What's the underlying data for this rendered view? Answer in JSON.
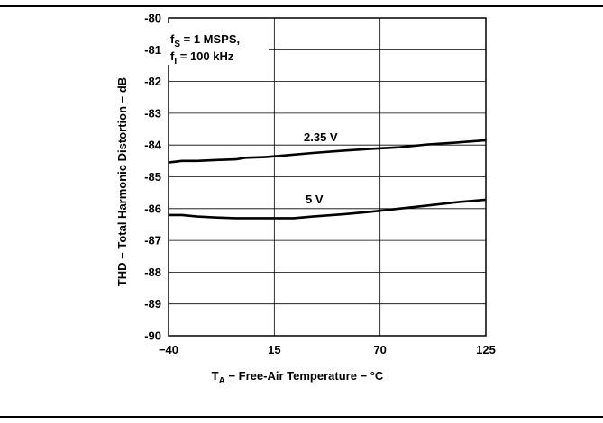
{
  "chart_data": {
    "type": "line",
    "xlabel_main": "T",
    "xlabel_sub": "A",
    "xlabel_rest": " − Free-Air Temperature − °C",
    "ylabel": "THD − Total Harmonic Distortion − dB",
    "xlim": [
      -40,
      125
    ],
    "ylim": [
      -90,
      -80
    ],
    "x_ticks": [
      -40,
      15,
      70,
      125
    ],
    "x_tick_labels": [
      "−40",
      "15",
      "70",
      "125"
    ],
    "y_ticks": [
      -80,
      -81,
      -82,
      -83,
      -84,
      -85,
      -86,
      -87,
      -88,
      -89,
      -90
    ],
    "y_tick_labels": [
      "-80",
      "-81",
      "-82",
      "-83",
      "-84",
      "-85",
      "-86",
      "-87",
      "-88",
      "-89",
      "-90"
    ],
    "grid": true,
    "conditions": {
      "line1_pre": "f",
      "line1_sub": "S",
      "line1_post": " = 1 MSPS,",
      "line2_pre": "f",
      "line2_sub": "I",
      "line2_post": " = 100 kHz"
    },
    "series": [
      {
        "name": "2.35 V",
        "x": [
          -40,
          -33,
          -25,
          -15,
          -5,
          0,
          10,
          20,
          35,
          50,
          65,
          80,
          95,
          110,
          125
        ],
        "y": [
          -84.55,
          -84.5,
          -84.5,
          -84.47,
          -84.45,
          -84.4,
          -84.38,
          -84.33,
          -84.25,
          -84.18,
          -84.12,
          -84.07,
          -83.98,
          -83.92,
          -83.85
        ]
      },
      {
        "name": "5 V",
        "x": [
          -40,
          -33,
          -25,
          -15,
          -5,
          5,
          15,
          25,
          35,
          50,
          65,
          80,
          95,
          110,
          125
        ],
        "y": [
          -86.2,
          -86.2,
          -86.25,
          -86.28,
          -86.3,
          -86.3,
          -86.3,
          -86.3,
          -86.25,
          -86.18,
          -86.1,
          -86.0,
          -85.9,
          -85.8,
          -85.72
        ]
      }
    ]
  }
}
